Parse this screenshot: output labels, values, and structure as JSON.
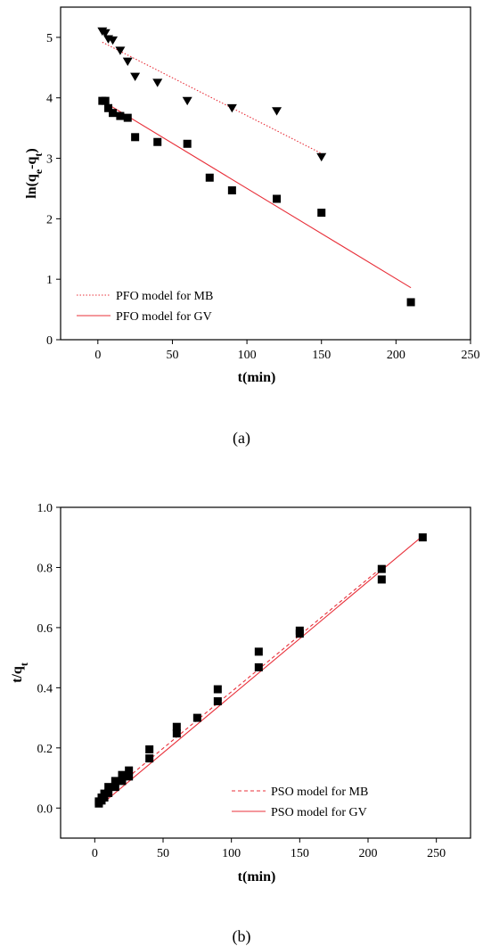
{
  "chart_data": [
    {
      "type": "scatter",
      "title": "",
      "xlabel": "t(min)",
      "ylabel": "ln(q_e - q_t)",
      "ylabel_parts": {
        "main": "ln(q",
        "sub1": "e",
        "mid": "-q",
        "sub2": "t",
        "end": ")"
      },
      "caption": "(a)",
      "xlim": [
        -25,
        250
      ],
      "ylim": [
        0,
        5.5
      ],
      "xticks": [
        0,
        50,
        100,
        150,
        200,
        250
      ],
      "yticks": [
        0,
        1,
        2,
        3,
        4,
        5
      ],
      "grid": false,
      "legend_position": "bottom-left",
      "series": [
        {
          "key": "mb",
          "marker": "triangle-down",
          "color": "#000000",
          "x": [
            3,
            5,
            7,
            10,
            15,
            20,
            25,
            40,
            60,
            90,
            120,
            150
          ],
          "y": [
            5.1,
            5.07,
            4.97,
            4.95,
            4.78,
            4.6,
            4.35,
            4.25,
            3.95,
            3.83,
            3.78,
            3.02
          ]
        },
        {
          "key": "gv",
          "marker": "square",
          "color": "#000000",
          "x": [
            3,
            5,
            7,
            10,
            15,
            20,
            25,
            40,
            60,
            75,
            90,
            120,
            150,
            210
          ],
          "y": [
            3.95,
            3.95,
            3.83,
            3.75,
            3.7,
            3.67,
            3.35,
            3.27,
            3.24,
            2.68,
            2.47,
            2.33,
            2.1,
            0.62
          ]
        }
      ],
      "fits": [
        {
          "name": "PFO model for MB",
          "style": "dotted",
          "color": "#e8303a",
          "x": [
            3,
            150
          ],
          "y": [
            4.92,
            3.08
          ]
        },
        {
          "name": "PFO model for GV",
          "style": "solid",
          "color": "#e8303a",
          "x": [
            3,
            210
          ],
          "y": [
            3.95,
            0.86
          ]
        }
      ]
    },
    {
      "type": "scatter",
      "title": "",
      "xlabel": "t(min)",
      "ylabel": "t/q_t",
      "ylabel_parts": {
        "main": "t/q",
        "sub1": "t"
      },
      "caption": "(b)",
      "xlim": [
        -25,
        275
      ],
      "ylim": [
        -0.1,
        1.0
      ],
      "xticks": [
        0,
        50,
        100,
        150,
        200,
        250
      ],
      "yticks": [
        0.0,
        0.2,
        0.4,
        0.6,
        0.8,
        1.0
      ],
      "ytick_labels": [
        "0.0",
        "0.2",
        "0.4",
        "0.6",
        "0.8",
        "1.0"
      ],
      "grid": false,
      "legend_position": "bottom-right",
      "series": [
        {
          "key": "mb",
          "marker": "square",
          "color": "#000000",
          "x": [
            3,
            5,
            7,
            10,
            15,
            20,
            25,
            40,
            60,
            90,
            120,
            150,
            210,
            240
          ],
          "y": [
            0.022,
            0.035,
            0.048,
            0.07,
            0.09,
            0.11,
            0.125,
            0.195,
            0.27,
            0.395,
            0.52,
            0.59,
            0.795,
            0.9
          ]
        },
        {
          "key": "gv",
          "marker": "square",
          "color": "#000000",
          "x": [
            3,
            5,
            7,
            10,
            15,
            20,
            25,
            40,
            60,
            75,
            90,
            120,
            150,
            210
          ],
          "y": [
            0.015,
            0.025,
            0.035,
            0.05,
            0.07,
            0.09,
            0.105,
            0.165,
            0.248,
            0.3,
            0.355,
            0.468,
            0.58,
            0.76
          ]
        }
      ],
      "fits": [
        {
          "name": "PSO model for MB",
          "style": "dashed",
          "color": "#e8303a",
          "x": [
            3,
            210
          ],
          "y": [
            0.022,
            0.8
          ]
        },
        {
          "name": "PSO model for GV",
          "style": "solid",
          "color": "#e8303a",
          "x": [
            3,
            240
          ],
          "y": [
            0.005,
            0.905
          ]
        }
      ]
    }
  ]
}
